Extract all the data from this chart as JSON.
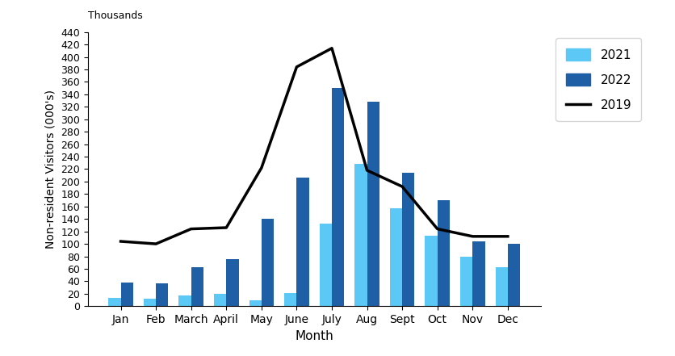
{
  "months": [
    "Jan",
    "Feb",
    "March",
    "April",
    "May",
    "June",
    "July",
    "Aug",
    "Sept",
    "Oct",
    "Nov",
    "Dec"
  ],
  "values_2021": [
    13,
    12,
    17,
    20,
    10,
    21,
    132,
    228,
    157,
    113,
    80,
    62
  ],
  "values_2022": [
    38,
    36,
    63,
    76,
    140,
    206,
    350,
    328,
    214,
    170,
    104,
    100
  ],
  "values_2019": [
    104,
    100,
    124,
    126,
    222,
    384,
    414,
    218,
    192,
    124,
    112,
    112
  ],
  "color_2021": "#5BC8F5",
  "color_2022": "#1F5FA6",
  "color_2019": "#000000",
  "xlabel": "Month",
  "ylabel": "Non-resident Visitors (000's)",
  "ylim": [
    0,
    440
  ],
  "yticks": [
    0,
    20,
    40,
    60,
    80,
    100,
    120,
    140,
    160,
    180,
    200,
    220,
    240,
    260,
    280,
    300,
    320,
    340,
    360,
    380,
    400,
    420,
    440
  ],
  "thousands_label": "Thousands",
  "bar_width": 0.35,
  "legend_labels": [
    "2021",
    "2022",
    "2019"
  ],
  "background_color": "#ffffff",
  "figsize": [
    8.37,
    4.41
  ],
  "dpi": 100
}
